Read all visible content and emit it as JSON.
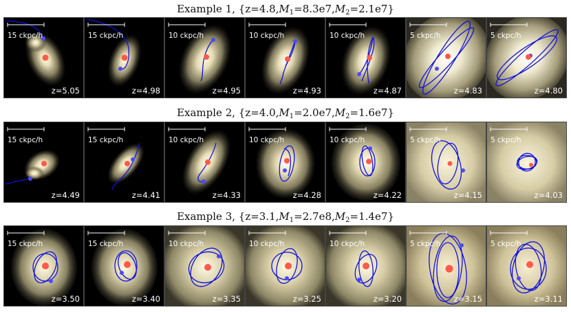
{
  "rows": [
    {
      "title_pre": "Example 1, {z=4.8,",
      "m1_value": "=8.3e7,",
      "m2_value": "=2.1e7}",
      "panels": [
        {
          "scale": "15 ckpc/h",
          "z": "z=5.05"
        },
        {
          "scale": "15 ckpc/h",
          "z": "z=4.98"
        },
        {
          "scale": "10 ckpc/h",
          "z": "z=4.95"
        },
        {
          "scale": "10 ckpc/h",
          "z": "z=4.93"
        },
        {
          "scale": "10 ckpc/h",
          "z": "z=4.87"
        },
        {
          "scale": "5 ckpc/h",
          "z": "z=4.83"
        },
        {
          "scale": "5 ckpc/h",
          "z": "z=4.80"
        }
      ]
    },
    {
      "title_pre": "Example 2, {z=4.0,",
      "m1_value": "=2.0e7,",
      "m2_value": "=1.6e7}",
      "panels": [
        {
          "scale": "15 ckpc/h",
          "z": "z=4.49"
        },
        {
          "scale": "15 ckpc/h",
          "z": "z=4.41"
        },
        {
          "scale": "10 ckpc/h",
          "z": "z=4.33"
        },
        {
          "scale": "10 ckpc/h",
          "z": "z=4.28"
        },
        {
          "scale": "10 ckpc/h",
          "z": "z=4.22"
        },
        {
          "scale": "5 ckpc/h",
          "z": "z=4.15"
        },
        {
          "scale": "5 ckpc/h",
          "z": "z=4.03"
        }
      ]
    },
    {
      "title_pre": "Example 3, {z=3.1,",
      "m1_value": "=2.7e8,",
      "m2_value": "=1.4e7}",
      "panels": [
        {
          "scale": "15 ckpc/h",
          "z": "z=3.50"
        },
        {
          "scale": "15 ckpc/h",
          "z": "z=3.40"
        },
        {
          "scale": "10 ckpc/h",
          "z": "z=3.35"
        },
        {
          "scale": "10 ckpc/h",
          "z": "z=3.25"
        },
        {
          "scale": "10 ckpc/h",
          "z": "z=3.20"
        },
        {
          "scale": "5 ckpc/h",
          "z": "z=3.15"
        },
        {
          "scale": "5 ckpc/h",
          "z": "z=3.11"
        }
      ]
    }
  ],
  "m1_symbol": "M",
  "m1_sub": "1",
  "m2_symbol": "M",
  "m2_sub": "2",
  "colors": {
    "orbit": "#1010e0",
    "secondary_marker": "#4a4aff",
    "central_marker": "#ff5a4a",
    "glow_core": "#ffffff",
    "glow_mid": "#d8cfa8",
    "glow_outer": "#5a5540",
    "background": "#000000"
  }
}
